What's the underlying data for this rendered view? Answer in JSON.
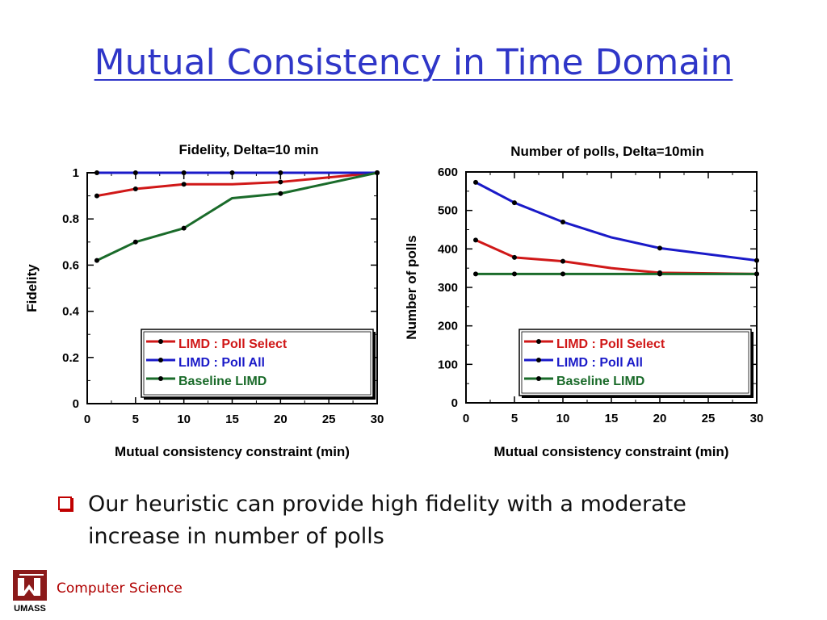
{
  "slide": {
    "title": "Mutual Consistency in Time Domain",
    "bullet": "Our heuristic can provide high fidelity with a moderate increase in number of polls",
    "footer": "Computer Science",
    "logo_text": "UMASS"
  },
  "colors": {
    "title": "#2f36c8",
    "red": "#d01818",
    "blue": "#1a1ac8",
    "green": "#1a6b2a",
    "footer": "#b00000"
  },
  "chart_data": [
    {
      "type": "line",
      "title": "Fidelity, Delta=10 min",
      "xlabel": "Mutual consistency constraint (min)",
      "ylabel": "Fidelity",
      "xlim": [
        0,
        30
      ],
      "ylim": [
        0,
        1
      ],
      "xticks": [
        "0",
        "5",
        "10",
        "15",
        "20",
        "25",
        "30"
      ],
      "yticks": [
        "0",
        "0.2",
        "0.4",
        "0.6",
        "0.8",
        "1"
      ],
      "legend_position": "bottom-right",
      "series": [
        {
          "name": "LIMD : Poll Select",
          "color": "#d01818",
          "x": [
            1,
            5,
            10,
            15,
            20,
            30
          ],
          "y": [
            0.9,
            0.93,
            0.95,
            0.95,
            0.96,
            1.0
          ],
          "markers": [
            0,
            1,
            2,
            4,
            5
          ]
        },
        {
          "name": "LIMD : Poll All",
          "color": "#1a1ac8",
          "x": [
            1,
            5,
            10,
            15,
            20,
            30
          ],
          "y": [
            1.0,
            1.0,
            1.0,
            1.0,
            1.0,
            1.0
          ],
          "markers": [
            0,
            1,
            2,
            3,
            4,
            5
          ]
        },
        {
          "name": "Baseline LIMD",
          "color": "#1a6b2a",
          "x": [
            1,
            5,
            10,
            15,
            20,
            30
          ],
          "y": [
            0.62,
            0.7,
            0.76,
            0.89,
            0.91,
            1.0
          ],
          "markers": [
            0,
            1,
            2,
            4,
            5
          ]
        }
      ]
    },
    {
      "type": "line",
      "title": "Number of polls,  Delta=10min",
      "xlabel": "Mutual consistency constraint (min)",
      "ylabel": "Number of polls",
      "xlim": [
        0,
        30
      ],
      "ylim": [
        0,
        600
      ],
      "xticks": [
        "0",
        "5",
        "10",
        "15",
        "20",
        "25",
        "30"
      ],
      "yticks": [
        "0",
        "100",
        "200",
        "300",
        "400",
        "500",
        "600"
      ],
      "legend_position": "bottom-right",
      "series": [
        {
          "name": "LIMD : Poll Select",
          "color": "#d01818",
          "x": [
            1,
            5,
            10,
            15,
            20,
            30
          ],
          "y": [
            423,
            378,
            368,
            350,
            338,
            335
          ],
          "markers": [
            0,
            1,
            2,
            4,
            5
          ]
        },
        {
          "name": "LIMD : Poll All",
          "color": "#1a1ac8",
          "x": [
            1,
            5,
            10,
            15,
            20,
            30
          ],
          "y": [
            573,
            520,
            470,
            430,
            402,
            370
          ],
          "markers": [
            0,
            1,
            2,
            4,
            5
          ]
        },
        {
          "name": "Baseline LIMD",
          "color": "#1a6b2a",
          "x": [
            1,
            5,
            10,
            15,
            20,
            30
          ],
          "y": [
            335,
            335,
            335,
            335,
            335,
            335
          ],
          "markers": [
            0,
            1,
            2,
            4,
            5
          ]
        }
      ]
    }
  ]
}
